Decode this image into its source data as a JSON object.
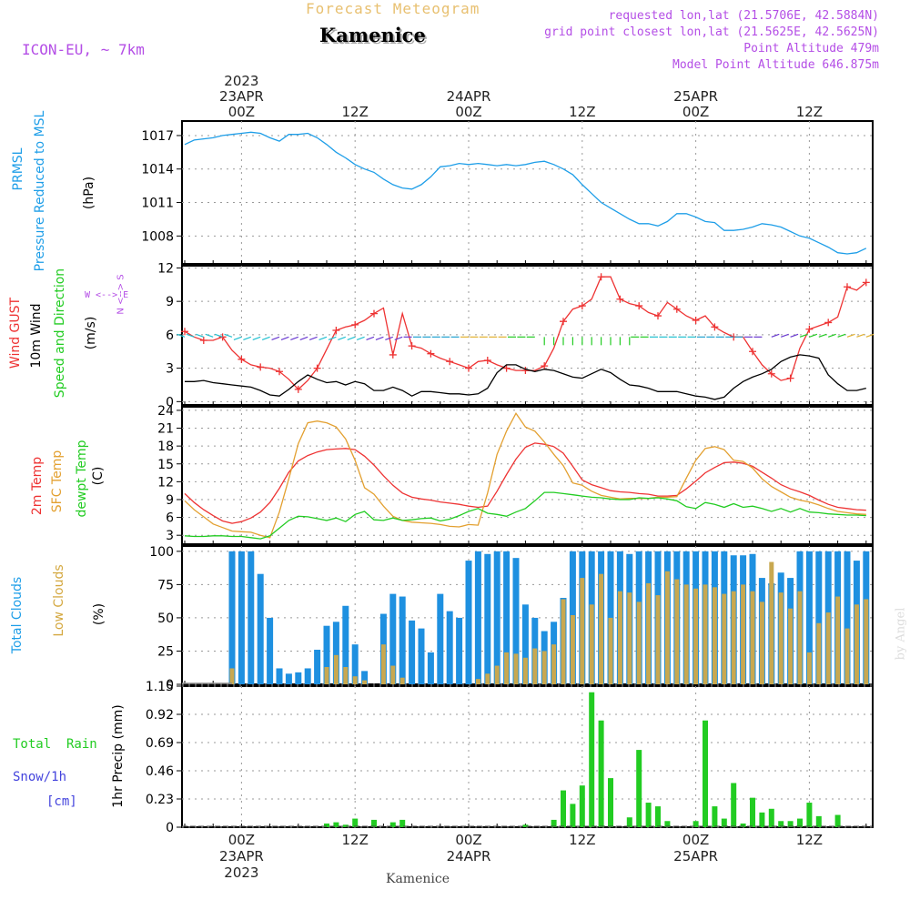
{
  "header": {
    "title": "Forecast Meteogram",
    "station": "Kamenice",
    "model": "ICON-EU, ~ 7km",
    "requested": "requested lon,lat (21.5706E, 42.5884N)",
    "grid": "grid point closest lon,lat (21.5625E, 42.5625N)",
    "point_alt": "Point Altitude 479m",
    "model_alt": "Model Point Altitude 646.875m",
    "footer": "Kamenice",
    "credit": "by Angel"
  },
  "colors": {
    "pressure": "#1e9ee8",
    "gust": "#ee3333",
    "wind": "#000000",
    "temp2m": "#ee3333",
    "sfc": "#e3a030",
    "dewpt": "#22cc22",
    "clouds_total": "#1e90e0",
    "clouds_low": "#c8a850",
    "precip": "#22cc22",
    "snow": "#4444dd",
    "violet": "#b44ee6"
  },
  "labels": {
    "pressure": {
      "line1": "PRMSL",
      "line2": "Pressure Reduced to MSL",
      "unit": "(hPa)"
    },
    "wind": {
      "gust": "Wind GUST",
      "wind10": "10m Wind",
      "speed_dir": "Speed and Direction",
      "unit": "(m/s)"
    },
    "compass": {
      "ns": "N <--> S",
      "we": "W <--> E"
    },
    "temp": {
      "t2m": "2m Temp",
      "sfc": "SFC Temp",
      "dew": "dewpt Temp",
      "unit": "(C)"
    },
    "clouds": {
      "total": "Total Clouds",
      "low": "Low Clouds",
      "unit": "(%)"
    },
    "precip": {
      "rain": "Total  Rain",
      "snow": "Snow/1h",
      "cm": "[cm]",
      "unit": "1hr Precip (mm)"
    }
  },
  "chart_data": {
    "type": "meteogram",
    "time": {
      "start": "2023-04-22T18Z",
      "end": "2023-04-25T18Z",
      "step_hours": 1,
      "samples": 73
    },
    "x_ticks": [
      {
        "hour": 6,
        "top": [
          "2023",
          "23APR",
          "00Z"
        ],
        "bottom": [
          "00Z",
          "23APR",
          "2023"
        ]
      },
      {
        "hour": 18,
        "top": [
          "12Z"
        ],
        "bottom": [
          "12Z"
        ]
      },
      {
        "hour": 30,
        "top": [
          "24APR",
          "00Z"
        ],
        "bottom": [
          "00Z",
          "24APR"
        ]
      },
      {
        "hour": 42,
        "top": [
          "12Z"
        ],
        "bottom": [
          "12Z"
        ]
      },
      {
        "hour": 54,
        "top": [
          "25APR",
          "00Z"
        ],
        "bottom": [
          "00Z",
          "25APR"
        ]
      },
      {
        "hour": 66,
        "top": [
          "12Z"
        ],
        "bottom": [
          "12Z"
        ]
      }
    ],
    "panels": [
      {
        "id": "pressure",
        "type": "line",
        "ylabel": "Pressure Reduced to MSL (hPa)",
        "ylim": [
          1005.5,
          1018.3
        ],
        "yticks": [
          1008,
          1011,
          1014,
          1017
        ],
        "series": [
          {
            "name": "PRMSL",
            "color": "#1e9ee8",
            "values": [
              1016.2,
              1016.6,
              1016.7,
              1016.8,
              1017.0,
              1017.1,
              1017.2,
              1017.3,
              1017.2,
              1016.8,
              1016.5,
              1017.1,
              1017.1,
              1017.2,
              1016.8,
              1016.2,
              1015.5,
              1015.0,
              1014.4,
              1014.0,
              1013.7,
              1013.1,
              1012.6,
              1012.3,
              1012.2,
              1012.6,
              1013.3,
              1014.2,
              1014.3,
              1014.5,
              1014.4,
              1014.5,
              1014.4,
              1014.3,
              1014.4,
              1014.3,
              1014.4,
              1014.6,
              1014.7,
              1014.4,
              1014.0,
              1013.5,
              1012.6,
              1011.8,
              1011.0,
              1010.5,
              1010.0,
              1009.5,
              1009.1,
              1009.1,
              1008.9,
              1009.3,
              1010.0,
              1010.0,
              1009.7,
              1009.3,
              1009.2,
              1008.5,
              1008.5,
              1008.6,
              1008.8,
              1009.1,
              1009.0,
              1008.8,
              1008.4,
              1008.0,
              1007.8,
              1007.4,
              1007.0,
              1006.5,
              1006.4,
              1006.5,
              1006.9
            ]
          }
        ]
      },
      {
        "id": "wind",
        "type": "line",
        "ylabel": "Wind (m/s)",
        "ylim": [
          -0.3,
          12.2
        ],
        "yticks": [
          0,
          3,
          6,
          9,
          12
        ],
        "series": [
          {
            "name": "Wind GUST",
            "color": "#ee3333",
            "marker": "+",
            "values": [
              6.3,
              5.8,
              5.5,
              5.5,
              5.8,
              4.6,
              3.8,
              3.3,
              3.1,
              3.0,
              2.7,
              2.0,
              1.1,
              1.9,
              3.0,
              4.7,
              6.4,
              6.7,
              6.9,
              7.3,
              7.9,
              8.4,
              4.2,
              7.9,
              5.0,
              4.8,
              4.3,
              3.9,
              3.6,
              3.3,
              3.0,
              3.6,
              3.7,
              3.3,
              3.0,
              2.8,
              2.8,
              2.8,
              3.2,
              4.8,
              7.2,
              8.3,
              8.6,
              9.2,
              11.2,
              11.2,
              9.2,
              8.8,
              8.6,
              8.0,
              7.7,
              8.9,
              8.3,
              7.7,
              7.3,
              7.7,
              6.7,
              6.2,
              5.8,
              5.8,
              4.5,
              3.3,
              2.5,
              1.9,
              2.1,
              4.8,
              6.5,
              6.8,
              7.1,
              7.6,
              10.3,
              10.0,
              10.7
            ]
          },
          {
            "name": "10m Wind",
            "color": "#000000",
            "values": [
              1.8,
              1.8,
              1.9,
              1.7,
              1.6,
              1.5,
              1.4,
              1.3,
              1.0,
              0.6,
              0.5,
              1.1,
              1.8,
              2.4,
              2.0,
              1.7,
              1.8,
              1.5,
              1.8,
              1.6,
              1.0,
              1.0,
              1.3,
              1.0,
              0.5,
              0.9,
              0.9,
              0.8,
              0.7,
              0.7,
              0.6,
              0.7,
              1.2,
              2.6,
              3.3,
              3.3,
              2.9,
              2.7,
              2.9,
              2.8,
              2.5,
              2.2,
              2.1,
              2.5,
              2.9,
              2.6,
              2.0,
              1.5,
              1.4,
              1.2,
              0.9,
              0.9,
              0.9,
              0.7,
              0.5,
              0.4,
              0.2,
              0.4,
              1.2,
              1.8,
              2.2,
              2.5,
              2.9,
              3.6,
              4.0,
              4.2,
              4.1,
              3.9,
              2.4,
              1.6,
              1.0,
              1.0,
              1.2
            ]
          }
        ]
      },
      {
        "id": "temp",
        "type": "line",
        "ylabel": "Temperature (C)",
        "ylim": [
          1.5,
          24.6
        ],
        "yticks": [
          3,
          6,
          9,
          12,
          15,
          18,
          21,
          24
        ],
        "series": [
          {
            "name": "2m Temp",
            "color": "#ee3333",
            "values": [
              10.0,
              8.5,
              7.3,
              6.3,
              5.4,
              5.0,
              5.3,
              5.9,
              6.9,
              8.5,
              10.9,
              13.6,
              15.5,
              16.4,
              17.0,
              17.4,
              17.5,
              17.6,
              17.4,
              16.3,
              14.8,
              13.0,
              11.4,
              10.1,
              9.4,
              9.1,
              8.9,
              8.6,
              8.4,
              8.2,
              7.9,
              7.7,
              7.9,
              10.4,
              13.2,
              15.8,
              17.8,
              18.5,
              18.3,
              17.9,
              16.8,
              14.6,
              12.3,
              11.5,
              11.0,
              10.5,
              10.3,
              10.2,
              10.0,
              9.9,
              9.6,
              9.6,
              9.7,
              10.8,
              12.1,
              13.5,
              14.4,
              15.2,
              15.3,
              15.1,
              14.6,
              13.6,
              12.6,
              11.5,
              10.8,
              10.3,
              9.7,
              8.9,
              8.2,
              7.7,
              7.5,
              7.3,
              7.2
            ]
          },
          {
            "name": "SFC Temp",
            "color": "#e3a030",
            "values": [
              8.8,
              7.3,
              6.1,
              4.9,
              4.3,
              3.7,
              3.6,
              3.5,
              3.0,
              2.6,
              6.9,
              12.5,
              18.4,
              21.9,
              22.2,
              21.9,
              21.2,
              19.2,
              15.6,
              11.0,
              9.9,
              7.9,
              6.2,
              5.5,
              5.2,
              5.1,
              5.0,
              4.8,
              4.5,
              4.4,
              4.8,
              4.7,
              10.1,
              16.6,
              20.5,
              23.5,
              21.2,
              20.5,
              18.7,
              16.6,
              14.7,
              11.8,
              11.4,
              10.4,
              9.7,
              9.4,
              9.1,
              9.2,
              9.2,
              9.2,
              9.4,
              9.4,
              9.5,
              12.6,
              15.6,
              17.6,
              17.9,
              17.4,
              15.6,
              15.4,
              14.3,
              12.5,
              11.2,
              10.3,
              9.4,
              8.9,
              8.6,
              8.1,
              7.5,
              7.0,
              6.8,
              6.6,
              6.5
            ]
          },
          {
            "name": "dewpt Temp",
            "color": "#22cc22",
            "values": [
              2.9,
              2.8,
              2.8,
              2.9,
              2.9,
              2.8,
              2.8,
              2.6,
              2.4,
              2.9,
              4.2,
              5.5,
              6.2,
              6.1,
              5.8,
              5.5,
              5.9,
              5.3,
              6.5,
              7.0,
              5.6,
              5.5,
              5.9,
              5.5,
              5.6,
              5.8,
              5.9,
              5.4,
              5.7,
              6.3,
              7.0,
              7.5,
              6.7,
              6.5,
              6.2,
              6.9,
              7.5,
              8.8,
              10.2,
              10.2,
              10.0,
              9.8,
              9.6,
              9.4,
              9.3,
              9.1,
              9.0,
              9.0,
              9.3,
              9.2,
              9.3,
              9.1,
              8.8,
              7.8,
              7.5,
              8.5,
              8.2,
              7.7,
              8.3,
              7.7,
              7.9,
              7.5,
              7.0,
              7.5,
              6.9,
              7.5,
              6.9,
              6.8,
              6.6,
              6.5,
              6.4,
              6.4,
              6.3
            ]
          }
        ]
      },
      {
        "id": "clouds",
        "type": "bar",
        "ylabel": "Clouds (%)",
        "ylim": [
          0,
          104
        ],
        "yticks": [
          0,
          25,
          50,
          75,
          100
        ],
        "series": [
          {
            "name": "Total Clouds",
            "color": "#1e90e0",
            "values": [
              0,
              0,
              0,
              0,
              0,
              100,
              100,
              100,
              83,
              50,
              12,
              8,
              9,
              12,
              26,
              44,
              47,
              59,
              30,
              10,
              0,
              53,
              68,
              66,
              48,
              42,
              24,
              68,
              55,
              50,
              93,
              100,
              98,
              100,
              100,
              95,
              60,
              50,
              40,
              47,
              65,
              100,
              100,
              100,
              100,
              100,
              100,
              98,
              100,
              100,
              100,
              100,
              100,
              100,
              100,
              100,
              100,
              100,
              97,
              97,
              98,
              80,
              76,
              84,
              80,
              100,
              100,
              100,
              100,
              100,
              100,
              93,
              100
            ]
          },
          {
            "name": "Low Clouds",
            "color": "#c8a850",
            "values": [
              0,
              0,
              0,
              0,
              0,
              12,
              0,
              0,
              0,
              0,
              0,
              0,
              0,
              0,
              0,
              13,
              22,
              13,
              6,
              3,
              0,
              30,
              14,
              5,
              0,
              0,
              0,
              0,
              0,
              0,
              0,
              4,
              8,
              14,
              24,
              23,
              20,
              27,
              25,
              30,
              64,
              52,
              80,
              60,
              83,
              50,
              70,
              69,
              62,
              76,
              67,
              85,
              79,
              75,
              72,
              75,
              73,
              68,
              70,
              75,
              70,
              62,
              92,
              69,
              57,
              70,
              24,
              46,
              54,
              66,
              42,
              60,
              64
            ]
          }
        ]
      },
      {
        "id": "precip",
        "type": "bar",
        "ylabel": "1hr Precip (mm)",
        "ylim": [
          0,
          1.15
        ],
        "yticks": [
          0,
          0.23,
          0.46,
          0.69,
          0.92,
          1.15
        ],
        "series": [
          {
            "name": "Total Rain",
            "color": "#22cc22",
            "values": [
              0,
              0,
              0,
              0,
              0,
              0,
              0,
              0,
              0,
              0,
              0,
              0,
              0,
              0,
              0,
              0.03,
              0.04,
              0.02,
              0.07,
              0,
              0.06,
              0,
              0.04,
              0.06,
              0,
              0,
              0,
              0,
              0,
              0,
              0,
              0,
              0,
              0,
              0,
              0,
              0.02,
              0,
              0,
              0.06,
              0.3,
              0.19,
              0.34,
              1.1,
              0.87,
              0.4,
              0,
              0.08,
              0.63,
              0.2,
              0.17,
              0.05,
              0,
              0,
              0.05,
              0.87,
              0.17,
              0.07,
              0.36,
              0.03,
              0.24,
              0.12,
              0.15,
              0.05,
              0.05,
              0.07,
              0.2,
              0.09,
              0,
              0.1,
              0,
              0,
              0
            ]
          }
        ]
      }
    ],
    "wind_barbs_hint": "colored direction arrows drawn along the 10m wind panel near 6 m/s"
  }
}
